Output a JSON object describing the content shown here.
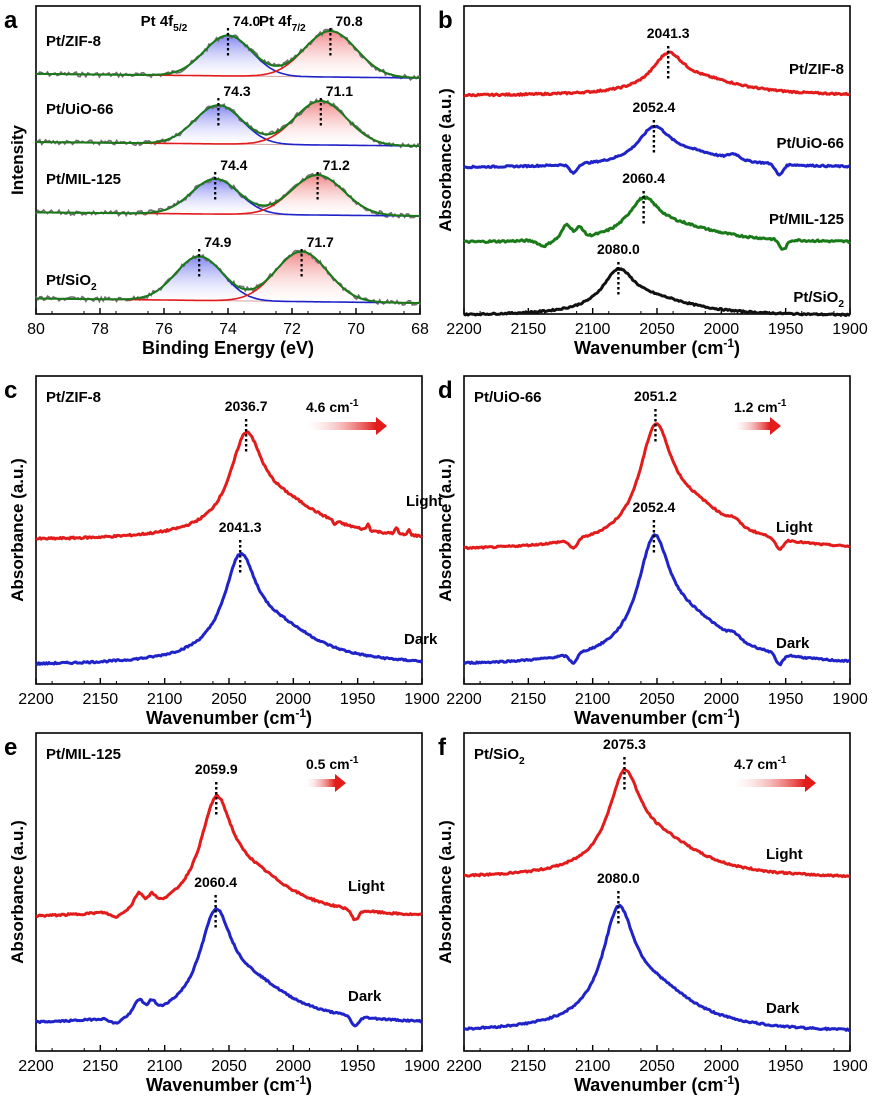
{
  "colors": {
    "red": "#e21b1b",
    "blue": "#1f23c8",
    "green": "#1a7a1a",
    "black": "#111111",
    "gray": "#707070"
  },
  "chart_data": [
    {
      "panel": "a",
      "type": "line",
      "title": "",
      "xlabel": "Binding Energy (eV)",
      "ylabel": "Intensity",
      "xlim": [
        80,
        68
      ],
      "ticks": [
        "80",
        "78",
        "76",
        "74",
        "72",
        "70",
        "68"
      ],
      "doublet_labels": [
        {
          "main": "Pt 4f",
          "sub": "5/2"
        },
        {
          "main": "Pt 4f",
          "sub": "7/2"
        }
      ],
      "series": [
        {
          "name": "Pt/ZIF-8",
          "label_main": "Pt/ZIF-8",
          "label_sub": "",
          "peak_5_2": 74.0,
          "peak_7_2": 70.8,
          "peak_5_2_label": "74.0",
          "peak_7_2_label": "70.8"
        },
        {
          "name": "Pt/UiO-66",
          "label_main": "Pt/UiO-66",
          "label_sub": "",
          "peak_5_2": 74.3,
          "peak_7_2": 71.1,
          "peak_5_2_label": "74.3",
          "peak_7_2_label": "71.1"
        },
        {
          "name": "Pt/MIL-125",
          "label_main": "Pt/MIL-125",
          "label_sub": "",
          "peak_5_2": 74.4,
          "peak_7_2": 71.2,
          "peak_5_2_label": "74.4",
          "peak_7_2_label": "71.2"
        },
        {
          "name": "Pt/SiO2",
          "label_main": "Pt/SiO",
          "label_sub": "2",
          "peak_5_2": 74.9,
          "peak_7_2": 71.7,
          "peak_5_2_label": "74.9",
          "peak_7_2_label": "71.7"
        }
      ]
    },
    {
      "panel": "b",
      "type": "line",
      "xlabel": "Wavenumber (cm-1)",
      "ylabel": "Absorbance (a.u.)",
      "xlim": [
        2200,
        1900
      ],
      "ticks": [
        "2200",
        "2150",
        "2100",
        "2050",
        "2000",
        "1950",
        "1900"
      ],
      "series": [
        {
          "name": "Pt/ZIF-8",
          "label_main": "Pt/ZIF-8",
          "label_sub": "",
          "peak": 2041.3,
          "peak_label": "2041.3",
          "color": "red"
        },
        {
          "name": "Pt/UiO-66",
          "label_main": "Pt/UiO-66",
          "label_sub": "",
          "peak": 2052.4,
          "peak_label": "2052.4",
          "color": "blue"
        },
        {
          "name": "Pt/MIL-125",
          "label_main": "Pt/MIL-125",
          "label_sub": "",
          "peak": 2060.4,
          "peak_label": "2060.4",
          "color": "green"
        },
        {
          "name": "Pt/SiO2",
          "label_main": "Pt/SiO",
          "label_sub": "2",
          "peak": 2080.0,
          "peak_label": "2080.0",
          "color": "black"
        }
      ]
    },
    {
      "panel": "c",
      "type": "line",
      "sample_main": "Pt/ZIF-8",
      "sample_sub": "",
      "xlabel": "Wavenumber (cm-1)",
      "ylabel": "Absorbance (a.u.)",
      "xlim": [
        2200,
        1900
      ],
      "ticks": [
        "2200",
        "2150",
        "2100",
        "2050",
        "2000",
        "1950",
        "1900"
      ],
      "shift": 4.6,
      "shift_label": "4.6 cm",
      "series": [
        {
          "name": "Light",
          "label": "Light",
          "peak": 2036.7,
          "peak_label": "2036.7",
          "color": "red"
        },
        {
          "name": "Dark",
          "label": "Dark",
          "peak": 2041.3,
          "peak_label": "2041.3",
          "color": "blue"
        }
      ]
    },
    {
      "panel": "d",
      "type": "line",
      "sample_main": "Pt/UiO-66",
      "sample_sub": "",
      "xlabel": "Wavenumber (cm-1)",
      "ylabel": "Absorbance (a.u.)",
      "xlim": [
        2200,
        1900
      ],
      "ticks": [
        "2200",
        "2150",
        "2100",
        "2050",
        "2000",
        "1950",
        "1900"
      ],
      "shift": 1.2,
      "shift_label": "1.2 cm",
      "series": [
        {
          "name": "Light",
          "label": "Light",
          "peak": 2051.2,
          "peak_label": "2051.2",
          "color": "red"
        },
        {
          "name": "Dark",
          "label": "Dark",
          "peak": 2052.4,
          "peak_label": "2052.4",
          "color": "blue"
        }
      ]
    },
    {
      "panel": "e",
      "type": "line",
      "sample_main": "Pt/MIL-125",
      "sample_sub": "",
      "xlabel": "Wavenumber (cm-1)",
      "ylabel": "Absorbance (a.u.)",
      "xlim": [
        2200,
        1900
      ],
      "ticks": [
        "2200",
        "2150",
        "2100",
        "2050",
        "2000",
        "1950",
        "1900"
      ],
      "shift": 0.5,
      "shift_label": "0.5 cm",
      "series": [
        {
          "name": "Light",
          "label": "Light",
          "peak": 2059.9,
          "peak_label": "2059.9",
          "color": "red"
        },
        {
          "name": "Dark",
          "label": "Dark",
          "peak": 2060.4,
          "peak_label": "2060.4",
          "color": "blue"
        }
      ]
    },
    {
      "panel": "f",
      "type": "line",
      "sample_main": "Pt/SiO",
      "sample_sub": "2",
      "xlabel": "Wavenumber (cm-1)",
      "ylabel": "Absorbance (a.u.)",
      "xlim": [
        2200,
        1900
      ],
      "ticks": [
        "2200",
        "2150",
        "2100",
        "2050",
        "2000",
        "1950",
        "1900"
      ],
      "shift": 4.7,
      "shift_label": "4.7 cm",
      "series": [
        {
          "name": "Light",
          "label": "Light",
          "peak": 2075.3,
          "peak_label": "2075.3",
          "color": "red"
        },
        {
          "name": "Dark",
          "label": "Dark",
          "peak": 2080.0,
          "peak_label": "2080.0",
          "color": "blue"
        }
      ]
    }
  ]
}
